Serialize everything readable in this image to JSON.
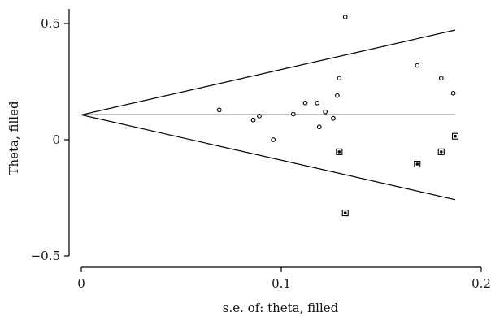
{
  "chart_data": {
    "type": "scatter",
    "title": "",
    "xlabel": "s.e. of: theta, filled",
    "ylabel": "Theta, filled",
    "xlim": [
      0,
      0.2
    ],
    "ylim": [
      -0.5,
      0.5
    ],
    "x_ticks": [
      0,
      0.1,
      0.2
    ],
    "x_tick_labels": [
      "0",
      "0.1",
      "0.2"
    ],
    "y_ticks": [
      -0.5,
      0,
      0.5
    ],
    "y_tick_labels": [
      "−0.5",
      "0",
      "0.5"
    ],
    "grid": false,
    "pooled_estimate": 0.107,
    "funnel_limits": {
      "se_range": [
        0,
        0.187
      ],
      "upper_at_max_se": 0.472,
      "lower_at_max_se": -0.258
    },
    "series": [
      {
        "marker": "hollow-circle",
        "points": [
          {
            "x": 0.069,
            "y": 0.128
          },
          {
            "x": 0.086,
            "y": 0.085
          },
          {
            "x": 0.089,
            "y": 0.102
          },
          {
            "x": 0.096,
            "y": 0.0
          },
          {
            "x": 0.106,
            "y": 0.11
          },
          {
            "x": 0.112,
            "y": 0.158
          },
          {
            "x": 0.118,
            "y": 0.158
          },
          {
            "x": 0.119,
            "y": 0.055
          },
          {
            "x": 0.122,
            "y": 0.12
          },
          {
            "x": 0.126,
            "y": 0.092
          },
          {
            "x": 0.128,
            "y": 0.19
          },
          {
            "x": 0.129,
            "y": 0.265
          },
          {
            "x": 0.132,
            "y": 0.528
          },
          {
            "x": 0.168,
            "y": 0.32
          },
          {
            "x": 0.18,
            "y": 0.265
          },
          {
            "x": 0.186,
            "y": 0.2
          }
        ]
      },
      {
        "marker": "boxed-dot",
        "points": [
          {
            "x": 0.129,
            "y": -0.052
          },
          {
            "x": 0.132,
            "y": -0.315
          },
          {
            "x": 0.168,
            "y": -0.105
          },
          {
            "x": 0.18,
            "y": -0.052
          },
          {
            "x": 0.187,
            "y": 0.015
          }
        ]
      }
    ]
  }
}
